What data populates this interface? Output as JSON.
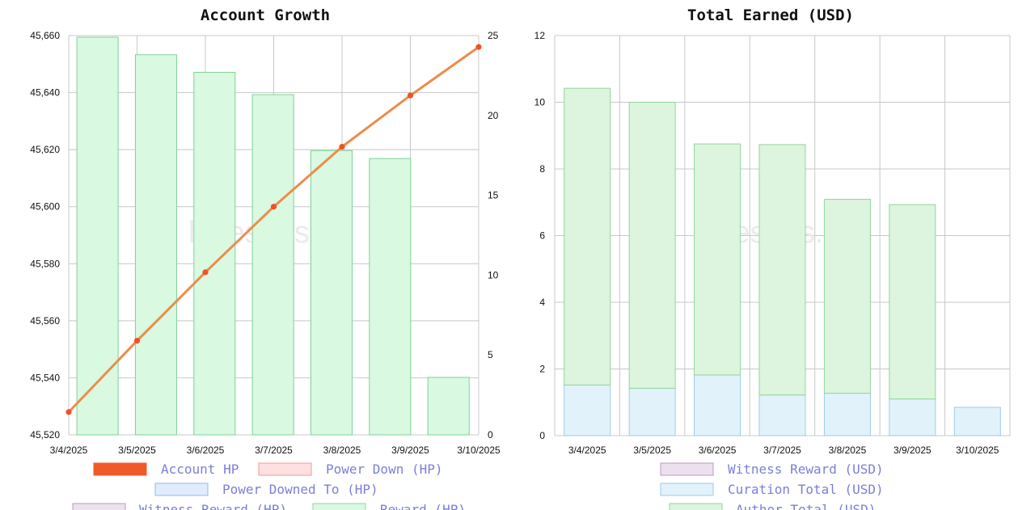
{
  "watermark": "hivestats.io",
  "chart_data": [
    {
      "type": "bar",
      "title": "Account Growth",
      "categories": [
        "3/4/2025",
        "3/5/2025",
        "3/6/2025",
        "3/7/2025",
        "3/8/2025",
        "3/9/2025",
        "3/10/2025"
      ],
      "y_left": {
        "range": [
          45520,
          45660
        ],
        "ticks": [
          "45,520",
          "45,540",
          "45,560",
          "45,580",
          "45,600",
          "45,620",
          "45,640",
          "45,660"
        ]
      },
      "y_right": {
        "range": [
          0,
          25
        ],
        "ticks": [
          "0",
          "5",
          "10",
          "15",
          "20",
          "25"
        ]
      },
      "bars": {
        "name": "Reward (HP)",
        "axis": "right",
        "values": [
          24.9,
          23.8,
          22.7,
          21.3,
          17.8,
          17.3,
          3.6
        ]
      },
      "line": {
        "name": "Account HP",
        "axis": "left",
        "x": [
          0,
          1,
          2,
          3,
          4,
          5,
          6
        ],
        "values": [
          45528,
          45553,
          45577,
          45600,
          45621,
          45639,
          45656
        ]
      },
      "grid": true,
      "legend": {
        "placement": "bottom",
        "items": [
          {
            "label": "Account HP",
            "fill": "#f05a28",
            "stroke": "#f05a28"
          },
          {
            "label": "Power Down (HP)",
            "fill": "#fde0df",
            "stroke": "#f29a95"
          },
          {
            "label": "Power Downed To (HP)",
            "fill": "#e0ecfd",
            "stroke": "#96b6ee"
          },
          {
            "label": "Witness Reward (HP)",
            "fill": "#ece0ee",
            "stroke": "#bb9ac2"
          },
          {
            "label": "Reward (HP)",
            "fill": "#daf8e2",
            "stroke": "#8fd6a4"
          }
        ]
      },
      "colors": {
        "bar_fill": "#d9f9e1",
        "bar_stroke": "#7fd199",
        "line": "#ee8c4a",
        "point": "#ef5325"
      }
    },
    {
      "type": "bar",
      "title": "Total Earned (USD)",
      "categories": [
        "3/4/2025",
        "3/5/2025",
        "3/6/2025",
        "3/7/2025",
        "3/8/2025",
        "3/9/2025",
        "3/10/2025"
      ],
      "y": {
        "range": [
          0,
          12
        ],
        "ticks": [
          "0",
          "2",
          "4",
          "6",
          "8",
          "10",
          "12"
        ]
      },
      "stacked": true,
      "series": [
        {
          "name": "Witness Reward (USD)",
          "values": [
            0,
            0,
            0,
            0,
            0,
            0,
            0
          ]
        },
        {
          "name": "Curation Total (USD)",
          "values": [
            1.52,
            1.42,
            1.82,
            1.22,
            1.27,
            1.1,
            0.85
          ]
        },
        {
          "name": "Author Total (USD)",
          "values": [
            8.9,
            8.58,
            6.93,
            7.51,
            5.82,
            5.83,
            0
          ]
        }
      ],
      "grid": true,
      "legend": {
        "placement": "bottom",
        "items": [
          {
            "label": "Witness Reward (USD)",
            "fill": "#ece0ee",
            "stroke": "#bb9ac2"
          },
          {
            "label": "Curation Total (USD)",
            "fill": "#e2f2fb",
            "stroke": "#9dcbe6"
          },
          {
            "label": "Author Total (USD)",
            "fill": "#ddf4de",
            "stroke": "#94d49c"
          }
        ]
      },
      "colors": {
        "curation_fill": "#e2f2fb",
        "curation_stroke": "#9dcbe6",
        "author_fill": "#ddf4de",
        "author_stroke": "#94d49c"
      }
    }
  ]
}
